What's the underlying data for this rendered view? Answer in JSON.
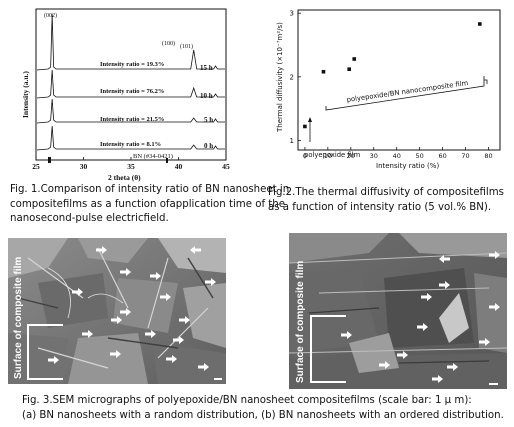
{
  "fig1": {
    "chart_data": {
      "type": "line",
      "xlabel": "2 theta (θ)",
      "ylabel": "Intensity (a.u.)",
      "x_ticks": [
        25,
        30,
        35,
        40,
        45
      ],
      "xlim": [
        25,
        45
      ],
      "peak_labels": [
        "(002)",
        "(100)",
        "(101)"
      ],
      "series": [
        {
          "name": "15 h",
          "intensity_ratio": "Intensity ratio = 19.3%"
        },
        {
          "name": "10 h",
          "intensity_ratio": "Intensity ratio = 76.2%"
        },
        {
          "name": "5 h",
          "intensity_ratio": "Intensity ratio = 21.5%"
        },
        {
          "name": "0 h",
          "intensity_ratio": "Intensity ratio = 8.1%"
        }
      ],
      "reference": "BN (#34-0421)"
    },
    "caption_lines": [
      "Fig. 1.Comparison of intensity ratio of BN nanosheet in",
      "compositefilms as a function ofapplication time of the",
      "nanosecond-pulse electricfield."
    ]
  },
  "fig2": {
    "chart_data": {
      "type": "scatter",
      "xlabel": "Intensity ratio (%)",
      "ylabel": "Thermal diffusivity (×10⁻⁷m²/s)",
      "x_ticks": [
        0,
        10,
        20,
        30,
        40,
        50,
        60,
        70,
        80
      ],
      "y_ticks": [
        1,
        2,
        3
      ],
      "xlim": [
        -3,
        85
      ],
      "ylim": [
        0.85,
        3.05
      ],
      "points": [
        {
          "x": 0,
          "y": 1.22
        },
        {
          "x": 8.1,
          "y": 2.08
        },
        {
          "x": 19.3,
          "y": 2.12
        },
        {
          "x": 21.5,
          "y": 2.28
        },
        {
          "x": 76.2,
          "y": 2.83
        }
      ],
      "annotations": [
        "polyepoxide film",
        "polyepoxide/BN nanocomposite film"
      ]
    },
    "caption_lines": [
      "Fig.2.The thermal diffusivity of compositefilms",
      "as a function of intensity ratio (5 vol.% BN)."
    ]
  },
  "fig3": {
    "panel_a_label": "Surface of composite film",
    "panel_b_label": "Surface of composite film",
    "caption_lines": [
      "Fig. 3.SEM micrographs of polyepoxide/BN nanosheet compositefilms (scale bar: 1 μ m):",
      "(a) BN nanosheets with a random distribution, (b) BN nanosheets with an ordered distribution."
    ]
  },
  "colors": {
    "sem_bg": "#7d7d7d",
    "arrow": "#ffffff",
    "ink": "#111111"
  }
}
